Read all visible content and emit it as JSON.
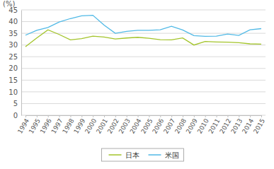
{
  "chart_data": {
    "type": "line",
    "y_label": "(%)",
    "categories": [
      "1994",
      "1995",
      "1996",
      "1997",
      "1998",
      "1999",
      "2000",
      "2001",
      "2002",
      "2003",
      "2004",
      "2005",
      "2006",
      "2007",
      "2008",
      "2009",
      "2010",
      "2011",
      "2012",
      "2013",
      "2014",
      "2015"
    ],
    "series": [
      {
        "name": "日本",
        "color": "#a3c42a",
        "values": [
          29.3,
          33.0,
          36.5,
          34.5,
          32.2,
          32.7,
          33.8,
          33.4,
          32.6,
          33.0,
          33.3,
          32.9,
          32.3,
          32.2,
          33.0,
          30.0,
          31.5,
          31.3,
          31.2,
          31.0,
          30.5,
          30.4
        ]
      },
      {
        "name": "米国",
        "color": "#50b9e6",
        "values": [
          34.2,
          36.3,
          37.5,
          39.8,
          41.3,
          42.5,
          42.7,
          38.5,
          35.0,
          35.8,
          36.3,
          36.3,
          36.5,
          38.0,
          36.4,
          34.0,
          33.7,
          33.8,
          34.7,
          34.1,
          36.5,
          37.0
        ]
      }
    ],
    "ylim": [
      0,
      45
    ],
    "yticks": [
      0,
      5,
      10,
      15,
      20,
      25,
      30,
      35,
      40,
      45
    ],
    "grid": true,
    "legend": "bottom"
  }
}
